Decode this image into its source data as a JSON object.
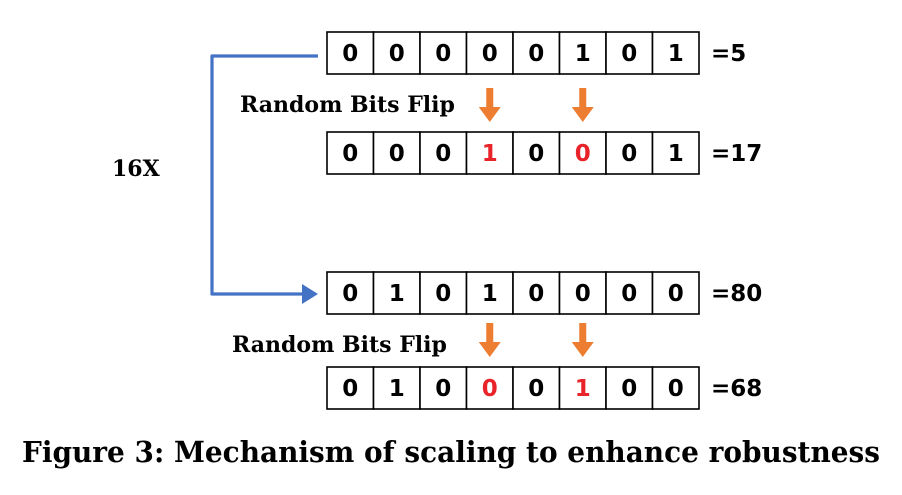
{
  "rows": [
    {
      "bits": [
        "0",
        "0",
        "0",
        "0",
        "0",
        "1",
        "0",
        "1"
      ],
      "flipped": [],
      "value": "=5"
    },
    {
      "bits": [
        "0",
        "0",
        "0",
        "1",
        "0",
        "0",
        "0",
        "1"
      ],
      "flipped": [
        3,
        5
      ],
      "value": "=17"
    },
    {
      "bits": [
        "0",
        "1",
        "0",
        "1",
        "0",
        "0",
        "0",
        "0"
      ],
      "flipped": [],
      "value": "=80"
    },
    {
      "bits": [
        "0",
        "1",
        "0",
        "0",
        "0",
        "1",
        "0",
        "0"
      ],
      "flipped": [
        3,
        5
      ],
      "value": "=68"
    }
  ],
  "flip_labels": [
    "Random Bits Flip",
    "Random Bits Flip"
  ],
  "scale_label": "16X",
  "caption": "Figure 3: Mechanism of scaling to enhance robustness",
  "colors": {
    "flipped_bit": "#e8232a",
    "arrow_orange": "#ed7d31",
    "scale_arrow": "#4472c4",
    "box_border": "#000000",
    "text": "#000000"
  }
}
